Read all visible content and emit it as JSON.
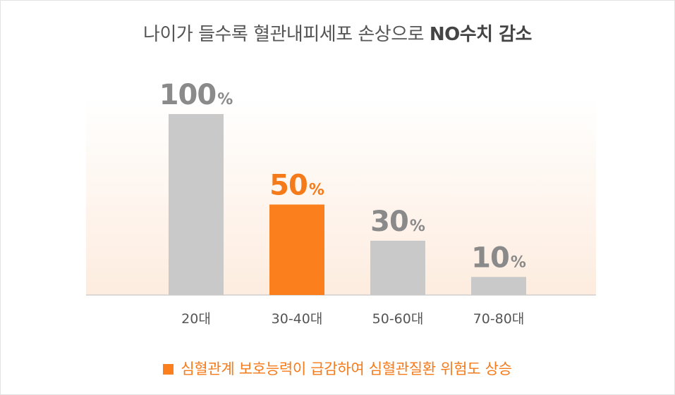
{
  "title": {
    "prefix": "나이가 들수록 혈관내피세포 손상으로 ",
    "emphasis": "NO수치 감소"
  },
  "colors": {
    "default_bar": "#c9c9c9",
    "highlight_bar": "#fb7f1d",
    "default_label": "#8a8a8a",
    "highlight_label": "#f57a19",
    "axis_text": "#555555",
    "background_gradient_top": "#ffffff",
    "background_gradient_bottom": "#fdecdf",
    "baseline": "#cfcfcf"
  },
  "legend": {
    "text": "심혈관계 보호능력이 급감하여 심혈관질환 위험도 상승",
    "color": "#f57a19"
  },
  "chart_data": {
    "type": "bar",
    "categories": [
      "20대",
      "30-40대",
      "50-60대",
      "70-80대"
    ],
    "values": [
      100,
      50,
      30,
      10
    ],
    "value_labels": [
      "100",
      "50",
      "30",
      "10"
    ],
    "unit": "%",
    "highlight_index": 1,
    "ylim": [
      0,
      100
    ],
    "xlabel": "",
    "ylabel": "",
    "grid": false
  }
}
